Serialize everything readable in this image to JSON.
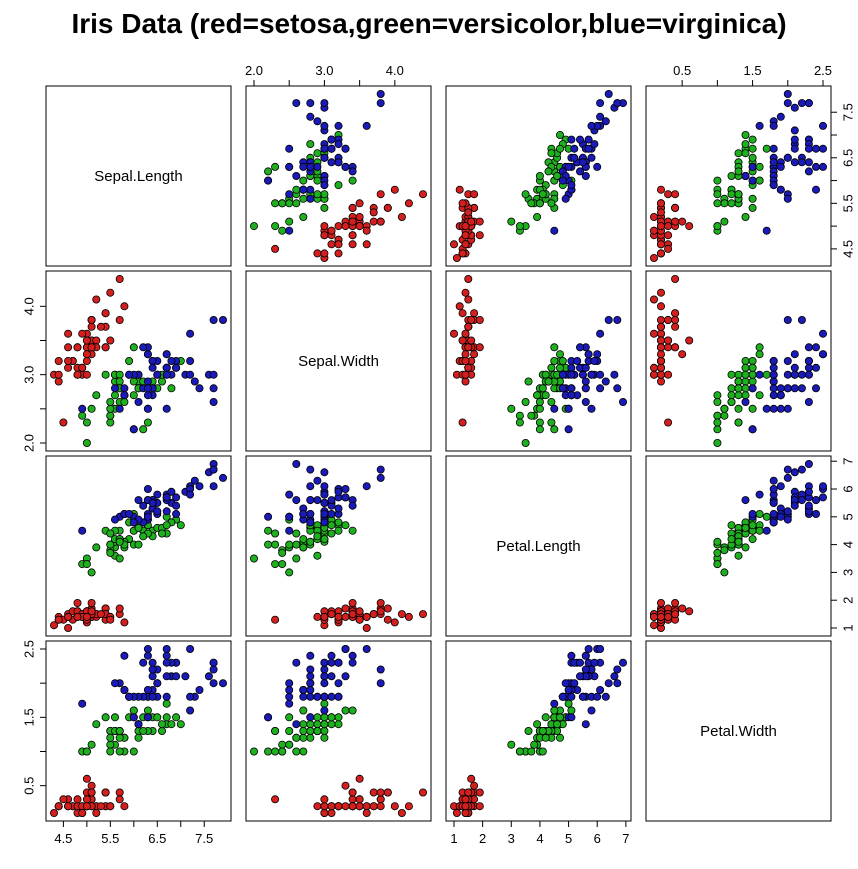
{
  "chart_data": {
    "type": "scatter",
    "title": "Iris Data (red=setosa,green=versicolor,blue=virginica)",
    "variables": [
      "Sepal.Length",
      "Sepal.Width",
      "Petal.Length",
      "Petal.Width"
    ],
    "ranges": {
      "Sepal.Length": [
        4.3,
        7.9
      ],
      "Sepal.Width": [
        2.0,
        4.4
      ],
      "Petal.Length": [
        1.0,
        6.9
      ],
      "Petal.Width": [
        0.1,
        2.5
      ]
    },
    "ticks": {
      "Sepal.Length": [
        4.5,
        5.5,
        6.5,
        7.5
      ],
      "Sepal.Width": [
        2.0,
        3.0,
        4.0
      ],
      "Petal.Length": [
        1,
        2,
        3,
        4,
        5,
        6,
        7
      ],
      "Petal.Width": [
        0.5,
        1.5,
        2.5
      ]
    },
    "tick_labels": {
      "Sepal.Length": [
        "4.5",
        "5.5",
        "6.5",
        "7.5"
      ],
      "Sepal.Width": [
        "2.0",
        "3.0",
        "4.0"
      ],
      "Petal.Length": [
        "1",
        "2",
        "3",
        "4",
        "5",
        "6",
        "7"
      ],
      "Petal.Width": [
        "0.5",
        "1.5",
        "2.5"
      ]
    },
    "minor_ticks": {
      "Sepal.Length": [
        5.0,
        6.0,
        7.0
      ],
      "Sepal.Width": [
        2.5,
        3.5
      ],
      "Petal.Length": [],
      "Petal.Width": [
        1.0,
        2.0
      ]
    },
    "grid": false,
    "colors": {
      "setosa": "#d41f1f",
      "versicolor": "#1fb01f",
      "virginica": "#1a1ab8"
    },
    "series": [
      {
        "species": "setosa",
        "color": "#d41f1f",
        "points": [
          [
            5.1,
            3.5,
            1.4,
            0.2
          ],
          [
            4.9,
            3.0,
            1.4,
            0.2
          ],
          [
            4.7,
            3.2,
            1.3,
            0.2
          ],
          [
            4.6,
            3.1,
            1.5,
            0.2
          ],
          [
            5.0,
            3.6,
            1.4,
            0.2
          ],
          [
            5.4,
            3.9,
            1.7,
            0.4
          ],
          [
            4.6,
            3.4,
            1.4,
            0.3
          ],
          [
            5.0,
            3.4,
            1.5,
            0.2
          ],
          [
            4.4,
            2.9,
            1.4,
            0.2
          ],
          [
            4.9,
            3.1,
            1.5,
            0.1
          ],
          [
            5.4,
            3.7,
            1.5,
            0.2
          ],
          [
            4.8,
            3.4,
            1.6,
            0.2
          ],
          [
            4.8,
            3.0,
            1.4,
            0.1
          ],
          [
            4.3,
            3.0,
            1.1,
            0.1
          ],
          [
            5.8,
            4.0,
            1.2,
            0.2
          ],
          [
            5.7,
            4.4,
            1.5,
            0.4
          ],
          [
            5.4,
            3.9,
            1.3,
            0.4
          ],
          [
            5.1,
            3.5,
            1.4,
            0.3
          ],
          [
            5.7,
            3.8,
            1.7,
            0.3
          ],
          [
            5.1,
            3.8,
            1.5,
            0.3
          ],
          [
            5.4,
            3.4,
            1.7,
            0.2
          ],
          [
            5.1,
            3.7,
            1.5,
            0.4
          ],
          [
            4.6,
            3.6,
            1.0,
            0.2
          ],
          [
            5.1,
            3.3,
            1.7,
            0.5
          ],
          [
            4.8,
            3.4,
            1.9,
            0.2
          ],
          [
            5.0,
            3.0,
            1.6,
            0.2
          ],
          [
            5.0,
            3.4,
            1.6,
            0.4
          ],
          [
            5.2,
            3.5,
            1.5,
            0.2
          ],
          [
            5.2,
            3.4,
            1.4,
            0.2
          ],
          [
            4.7,
            3.2,
            1.6,
            0.2
          ],
          [
            4.8,
            3.1,
            1.6,
            0.2
          ],
          [
            5.4,
            3.4,
            1.5,
            0.4
          ],
          [
            5.2,
            4.1,
            1.5,
            0.1
          ],
          [
            5.5,
            4.2,
            1.4,
            0.2
          ],
          [
            4.9,
            3.1,
            1.5,
            0.2
          ],
          [
            5.0,
            3.2,
            1.2,
            0.2
          ],
          [
            5.5,
            3.5,
            1.3,
            0.2
          ],
          [
            4.9,
            3.6,
            1.4,
            0.1
          ],
          [
            4.4,
            3.0,
            1.3,
            0.2
          ],
          [
            5.1,
            3.4,
            1.5,
            0.2
          ],
          [
            5.0,
            3.5,
            1.3,
            0.3
          ],
          [
            4.5,
            2.3,
            1.3,
            0.3
          ],
          [
            4.4,
            3.2,
            1.3,
            0.2
          ],
          [
            5.0,
            3.5,
            1.6,
            0.6
          ],
          [
            5.1,
            3.8,
            1.9,
            0.4
          ],
          [
            4.8,
            3.0,
            1.4,
            0.3
          ],
          [
            5.1,
            3.8,
            1.6,
            0.2
          ],
          [
            4.6,
            3.2,
            1.4,
            0.2
          ],
          [
            5.3,
            3.7,
            1.5,
            0.2
          ],
          [
            5.0,
            3.3,
            1.4,
            0.2
          ]
        ]
      },
      {
        "species": "versicolor",
        "color": "#1fb01f",
        "points": [
          [
            7.0,
            3.2,
            4.7,
            1.4
          ],
          [
            6.4,
            3.2,
            4.5,
            1.5
          ],
          [
            6.9,
            3.1,
            4.9,
            1.5
          ],
          [
            5.5,
            2.3,
            4.0,
            1.3
          ],
          [
            6.5,
            2.8,
            4.6,
            1.5
          ],
          [
            5.7,
            2.8,
            4.5,
            1.3
          ],
          [
            6.3,
            3.3,
            4.7,
            1.6
          ],
          [
            4.9,
            2.4,
            3.3,
            1.0
          ],
          [
            6.6,
            2.9,
            4.6,
            1.3
          ],
          [
            5.2,
            2.7,
            3.9,
            1.4
          ],
          [
            5.0,
            2.0,
            3.5,
            1.0
          ],
          [
            5.9,
            3.0,
            4.2,
            1.5
          ],
          [
            6.0,
            2.2,
            4.0,
            1.0
          ],
          [
            6.1,
            2.9,
            4.7,
            1.4
          ],
          [
            5.6,
            2.9,
            3.6,
            1.3
          ],
          [
            6.7,
            3.1,
            4.4,
            1.4
          ],
          [
            5.6,
            3.0,
            4.5,
            1.5
          ],
          [
            5.8,
            2.7,
            4.1,
            1.0
          ],
          [
            6.2,
            2.2,
            4.5,
            1.5
          ],
          [
            5.6,
            2.5,
            3.9,
            1.1
          ],
          [
            5.9,
            3.2,
            4.8,
            1.8
          ],
          [
            6.1,
            2.8,
            4.0,
            1.3
          ],
          [
            6.3,
            2.5,
            4.9,
            1.5
          ],
          [
            6.1,
            2.8,
            4.7,
            1.2
          ],
          [
            6.4,
            2.9,
            4.3,
            1.3
          ],
          [
            6.6,
            3.0,
            4.4,
            1.4
          ],
          [
            6.8,
            2.8,
            4.8,
            1.4
          ],
          [
            6.7,
            3.0,
            5.0,
            1.7
          ],
          [
            6.0,
            2.9,
            4.5,
            1.5
          ],
          [
            5.7,
            2.6,
            3.5,
            1.0
          ],
          [
            5.5,
            2.4,
            3.8,
            1.1
          ],
          [
            5.5,
            2.4,
            3.7,
            1.0
          ],
          [
            5.8,
            2.7,
            3.9,
            1.2
          ],
          [
            6.0,
            2.7,
            5.1,
            1.6
          ],
          [
            5.4,
            3.0,
            4.5,
            1.5
          ],
          [
            6.0,
            3.4,
            4.5,
            1.6
          ],
          [
            6.7,
            3.1,
            4.7,
            1.5
          ],
          [
            6.3,
            2.3,
            4.4,
            1.3
          ],
          [
            5.6,
            3.0,
            4.1,
            1.3
          ],
          [
            5.5,
            2.5,
            4.0,
            1.3
          ],
          [
            5.5,
            2.6,
            4.4,
            1.2
          ],
          [
            6.1,
            3.0,
            4.6,
            1.4
          ],
          [
            5.8,
            2.6,
            4.0,
            1.2
          ],
          [
            5.0,
            2.3,
            3.3,
            1.0
          ],
          [
            5.6,
            2.7,
            4.2,
            1.3
          ],
          [
            5.7,
            3.0,
            4.2,
            1.2
          ],
          [
            5.7,
            2.9,
            4.2,
            1.3
          ],
          [
            6.2,
            2.9,
            4.3,
            1.3
          ],
          [
            5.1,
            2.5,
            3.0,
            1.1
          ],
          [
            5.7,
            2.8,
            4.1,
            1.3
          ]
        ]
      },
      {
        "species": "virginica",
        "color": "#1a1ab8",
        "points": [
          [
            6.3,
            3.3,
            6.0,
            2.5
          ],
          [
            5.8,
            2.7,
            5.1,
            1.9
          ],
          [
            7.1,
            3.0,
            5.9,
            2.1
          ],
          [
            6.3,
            2.9,
            5.6,
            1.8
          ],
          [
            6.5,
            3.0,
            5.8,
            2.2
          ],
          [
            7.6,
            3.0,
            6.6,
            2.1
          ],
          [
            4.9,
            2.5,
            4.5,
            1.7
          ],
          [
            7.3,
            2.9,
            6.3,
            1.8
          ],
          [
            6.7,
            2.5,
            5.8,
            1.8
          ],
          [
            7.2,
            3.6,
            6.1,
            2.5
          ],
          [
            6.5,
            3.2,
            5.1,
            2.0
          ],
          [
            6.4,
            2.7,
            5.3,
            1.9
          ],
          [
            6.8,
            3.0,
            5.5,
            2.1
          ],
          [
            5.7,
            2.5,
            5.0,
            2.0
          ],
          [
            5.8,
            2.8,
            5.1,
            2.4
          ],
          [
            6.4,
            3.2,
            5.3,
            2.3
          ],
          [
            6.5,
            3.0,
            5.5,
            1.8
          ],
          [
            7.7,
            3.8,
            6.7,
            2.2
          ],
          [
            7.7,
            2.6,
            6.9,
            2.3
          ],
          [
            6.0,
            2.2,
            5.0,
            1.5
          ],
          [
            6.9,
            3.2,
            5.7,
            2.3
          ],
          [
            5.6,
            2.8,
            4.9,
            2.0
          ],
          [
            7.7,
            2.8,
            6.7,
            2.0
          ],
          [
            6.3,
            2.7,
            4.9,
            1.8
          ],
          [
            6.7,
            3.3,
            5.7,
            2.1
          ],
          [
            7.2,
            3.2,
            6.0,
            1.8
          ],
          [
            6.2,
            2.8,
            4.8,
            1.8
          ],
          [
            6.1,
            3.0,
            4.9,
            1.8
          ],
          [
            6.4,
            2.8,
            5.6,
            2.1
          ],
          [
            7.2,
            3.0,
            5.8,
            1.6
          ],
          [
            7.4,
            2.8,
            6.1,
            1.9
          ],
          [
            7.9,
            3.8,
            6.4,
            2.0
          ],
          [
            6.4,
            2.8,
            5.6,
            2.2
          ],
          [
            6.3,
            2.8,
            5.1,
            1.5
          ],
          [
            6.1,
            2.6,
            5.6,
            1.4
          ],
          [
            7.7,
            3.0,
            6.1,
            2.3
          ],
          [
            6.3,
            3.4,
            5.6,
            2.4
          ],
          [
            6.4,
            3.1,
            5.5,
            1.8
          ],
          [
            6.0,
            3.0,
            4.8,
            1.8
          ],
          [
            6.9,
            3.1,
            5.4,
            2.1
          ],
          [
            6.7,
            3.1,
            5.6,
            2.4
          ],
          [
            6.9,
            3.1,
            5.1,
            2.3
          ],
          [
            5.8,
            2.7,
            5.1,
            1.9
          ],
          [
            6.8,
            3.2,
            5.9,
            2.3
          ],
          [
            6.7,
            3.3,
            5.7,
            2.5
          ],
          [
            6.7,
            3.0,
            5.2,
            2.3
          ],
          [
            6.3,
            2.5,
            5.0,
            1.9
          ],
          [
            6.5,
            3.0,
            5.2,
            2.0
          ],
          [
            6.2,
            3.4,
            5.4,
            2.3
          ],
          [
            5.9,
            3.0,
            5.1,
            1.8
          ]
        ]
      }
    ]
  }
}
